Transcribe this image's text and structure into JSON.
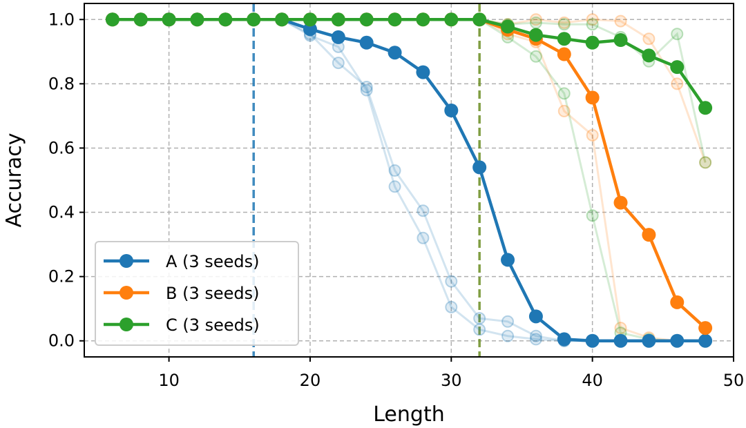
{
  "chart_data": {
    "type": "line",
    "title": "",
    "xlabel": "Length",
    "ylabel": "Accuracy",
    "xlim": [
      4,
      50
    ],
    "ylim": [
      -0.05,
      1.05
    ],
    "xticks": [
      10,
      20,
      30,
      40,
      50
    ],
    "yticks": [
      0.0,
      0.2,
      0.4,
      0.6,
      0.8,
      1.0
    ],
    "ytick_labels": [
      "0.0",
      "0.2",
      "0.4",
      "0.6",
      "0.8",
      "1.0"
    ],
    "grid": true,
    "legend_position": "lower-left",
    "x": [
      6,
      8,
      10,
      12,
      14,
      16,
      18,
      20,
      22,
      24,
      26,
      28,
      30,
      32,
      34,
      36,
      38,
      40,
      42,
      44,
      46,
      48
    ],
    "series": [
      {
        "name": "A (3 seeds)",
        "color": "#1f77b4",
        "values": [
          1.0,
          1.0,
          1.0,
          1.0,
          1.0,
          1.0,
          1.0,
          0.97,
          0.945,
          0.928,
          0.897,
          0.836,
          0.717,
          0.54,
          0.252,
          0.076,
          0.005,
          0.0,
          0.0,
          0.0,
          0.0,
          0.0
        ],
        "seeds": [
          [
            1.0,
            1.0,
            1.0,
            1.0,
            1.0,
            1.0,
            1.0,
            0.955,
            0.865,
            0.79,
            0.53,
            0.405,
            0.185,
            0.07,
            0.06,
            0.015,
            0.0,
            0.0,
            0.0,
            0.0,
            0.0,
            0.0
          ],
          [
            1.0,
            1.0,
            1.0,
            1.0,
            1.0,
            1.0,
            1.0,
            0.95,
            0.915,
            0.78,
            0.48,
            0.32,
            0.105,
            0.035,
            0.015,
            0.005,
            0.0,
            0.0,
            0.0,
            0.0,
            0.0,
            0.0
          ]
        ],
        "vline": 16
      },
      {
        "name": "B (3 seeds)",
        "color": "#ff7f0e",
        "values": [
          1.0,
          1.0,
          1.0,
          1.0,
          1.0,
          1.0,
          1.0,
          1.0,
          1.0,
          1.0,
          1.0,
          1.0,
          1.0,
          1.0,
          0.968,
          0.94,
          0.892,
          0.757,
          0.43,
          0.33,
          0.12,
          0.04
        ],
        "seeds": [
          [
            1.0,
            1.0,
            1.0,
            1.0,
            1.0,
            1.0,
            1.0,
            1.0,
            1.0,
            1.0,
            1.0,
            1.0,
            1.0,
            1.0,
            0.985,
            1.0,
            0.99,
            1.0,
            0.995,
            0.94,
            0.8,
            0.555
          ],
          [
            1.0,
            1.0,
            1.0,
            1.0,
            1.0,
            1.0,
            1.0,
            1.0,
            1.0,
            1.0,
            1.0,
            1.0,
            1.0,
            1.0,
            0.955,
            0.93,
            0.715,
            0.64,
            0.04,
            0.01,
            0.0,
            0.0
          ]
        ]
      },
      {
        "name": "C (3 seeds)",
        "color": "#2ca02c",
        "values": [
          1.0,
          1.0,
          1.0,
          1.0,
          1.0,
          1.0,
          1.0,
          1.0,
          1.0,
          1.0,
          1.0,
          1.0,
          1.0,
          1.0,
          0.978,
          0.952,
          0.94,
          0.928,
          0.936,
          0.888,
          0.852,
          0.725
        ],
        "seeds": [
          [
            1.0,
            1.0,
            1.0,
            1.0,
            1.0,
            1.0,
            1.0,
            1.0,
            1.0,
            1.0,
            1.0,
            1.0,
            1.0,
            1.0,
            0.985,
            0.99,
            0.985,
            0.985,
            0.945,
            0.87,
            0.955,
            0.555
          ],
          [
            1.0,
            1.0,
            1.0,
            1.0,
            1.0,
            1.0,
            1.0,
            1.0,
            1.0,
            1.0,
            1.0,
            1.0,
            1.0,
            1.0,
            0.945,
            0.885,
            0.77,
            0.39,
            0.025,
            0.005,
            0.0,
            0.0
          ]
        ]
      }
    ],
    "vlines": [
      {
        "x": 16,
        "color": "#1f77b4"
      },
      {
        "x": 32,
        "color": "#6b8e23"
      }
    ]
  }
}
